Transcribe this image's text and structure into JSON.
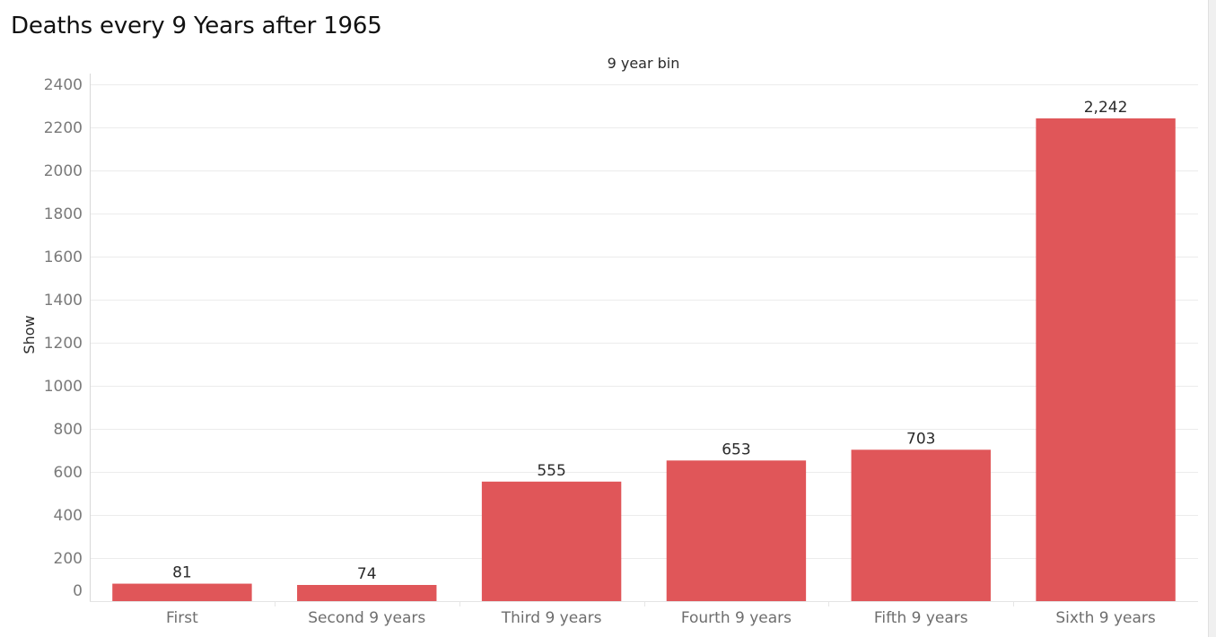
{
  "chart_data": {
    "type": "bar",
    "title": "Deaths every 9 Years after 1965",
    "top_label": "9 year bin",
    "ylabel": "Show",
    "xlabel": "",
    "categories": [
      "First",
      "Second 9 years",
      "Third 9 years",
      "Fourth 9 years",
      "Fifth 9 years",
      "Sixth 9 years"
    ],
    "values": [
      81,
      74,
      555,
      653,
      703,
      2242
    ],
    "data_labels": [
      "81",
      "74",
      "555",
      "653",
      "703",
      "2,242"
    ],
    "ylim": [
      0,
      2400
    ],
    "yticks": [
      0,
      200,
      400,
      600,
      800,
      1000,
      1200,
      1400,
      1600,
      1800,
      2000,
      2200,
      2400
    ],
    "bar_color": "#e05659",
    "grid": true,
    "legend": "none"
  }
}
